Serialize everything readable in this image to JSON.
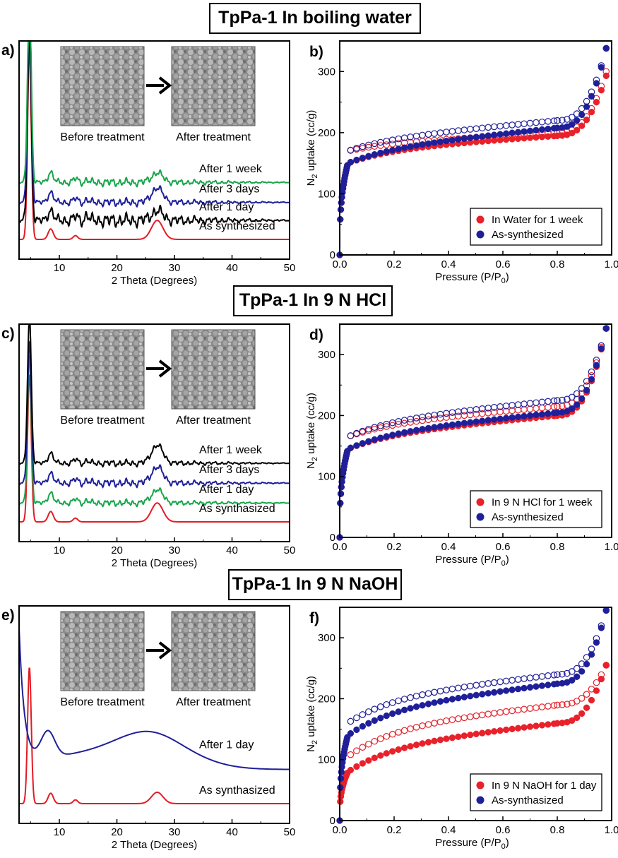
{
  "sections": [
    {
      "title": "TpPa-1 In boiling water"
    },
    {
      "title": "TpPa-1 In 9 N HCl"
    },
    {
      "title": "TpPa-1 In 9 N NaOH"
    }
  ],
  "chart_data": [
    {
      "panel": "a)",
      "type": "line",
      "xlabel": "2 Theta (Degrees)",
      "ylabel": "",
      "xlim": [
        3,
        50
      ],
      "xticks": [
        10,
        20,
        30,
        40,
        50
      ],
      "inset": {
        "left_caption": "Before treatment",
        "right_caption": "After treatment"
      },
      "series": [
        {
          "name": "As synthesized",
          "color": "#e31b23",
          "offset": 0.0,
          "peak": 1.0,
          "hump": 0.1,
          "noise": 0.0
        },
        {
          "name": "After 1 day",
          "color": "#000000",
          "offset": 0.1,
          "peak": 0.98,
          "hump": 0.05,
          "noise": 0.02
        },
        {
          "name": "After 3 days",
          "color": "#1f1f9a",
          "offset": 0.195,
          "peak": 1.06,
          "hump": 0.075,
          "noise": 0.012
        },
        {
          "name": "After 1 week",
          "color": "#17a64a",
          "offset": 0.3,
          "peak": 1.0,
          "hump": 0.05,
          "noise": 0.012
        }
      ]
    },
    {
      "panel": "b)",
      "type": "scatter",
      "xlabel": "Pressure (P/P",
      "xlabel_sub": "0",
      "xlabel_end": ")",
      "ylabel": "N",
      "ylabel_sub": "2",
      "ylabel_end": " uptake (cc/g)",
      "xlim": [
        0,
        1.0
      ],
      "ylim": [
        0,
        350
      ],
      "xticks": [
        "0.0",
        "0.2",
        "0.4",
        "0.6",
        "0.8",
        "1.0"
      ],
      "yticks": [
        0,
        100,
        200,
        300
      ],
      "legend": "bottom-right",
      "series": [
        {
          "name": "In Water for 1 week",
          "color": "#e8212a",
          "p": [
            150,
            172,
            195,
            293,
            0.9
          ],
          "d": [
            170,
            182,
            200,
            300
          ]
        },
        {
          "name": "As-synthesized",
          "color": "#1f1f9a",
          "p": [
            150,
            172,
            208,
            338,
            0.86
          ],
          "d": [
            170,
            188,
            220,
            338
          ]
        }
      ]
    },
    {
      "panel": "c)",
      "type": "line",
      "xlabel": "2 Theta (Degrees)",
      "ylabel": "",
      "xlim": [
        3,
        50
      ],
      "xticks": [
        10,
        20,
        30,
        40,
        50
      ],
      "inset": {
        "left_caption": "Before treatment",
        "right_caption": "After treatment"
      },
      "series": [
        {
          "name": "As synthasized",
          "color": "#e31b23",
          "offset": 0.0,
          "peak": 0.78,
          "hump": 0.1,
          "noise": 0.0
        },
        {
          "name": "After 1 day",
          "color": "#17a64a",
          "offset": 0.1,
          "peak": 0.78,
          "hump": 0.07,
          "noise": 0.01
        },
        {
          "name": "After 3 days",
          "color": "#1f1f9a",
          "offset": 0.205,
          "peak": 0.75,
          "hump": 0.085,
          "noise": 0.012
        },
        {
          "name": "After 1 week",
          "color": "#000000",
          "offset": 0.31,
          "peak": 0.78,
          "hump": 0.095,
          "noise": 0.01
        }
      ]
    },
    {
      "panel": "d)",
      "type": "scatter",
      "xlabel": "Pressure (P/P",
      "xlabel_sub": "0",
      "xlabel_end": ")",
      "ylabel": "N",
      "ylabel_sub": "2",
      "ylabel_end": " uptake (cc/g)",
      "xlim": [
        0,
        1.0
      ],
      "ylim": [
        0,
        350
      ],
      "xticks": [
        "0.0",
        "0.2",
        "0.4",
        "0.6",
        "0.8",
        "1.0"
      ],
      "yticks": [
        0,
        100,
        200,
        300
      ],
      "legend": "bottom-right",
      "series": [
        {
          "name": "In 9 N HCl for 1 week",
          "color": "#e8212a",
          "p": [
            145,
            168,
            200,
            343,
            0.86
          ],
          "d": [
            165,
            185,
            215,
            343
          ]
        },
        {
          "name": "As-synthesized",
          "color": "#1f1f9a",
          "p": [
            145,
            170,
            205,
            343,
            0.84
          ],
          "d": [
            165,
            190,
            225,
            343
          ]
        }
      ]
    },
    {
      "panel": "e)",
      "type": "line",
      "xlabel": "2 Theta (Degrees)",
      "ylabel": "",
      "xlim": [
        3,
        50
      ],
      "xticks": [
        10,
        20,
        30,
        40,
        50
      ],
      "inset": {
        "left_caption": "Before treatment",
        "right_caption": "After treatment"
      },
      "series": [
        {
          "name": "As synthasized",
          "color": "#e31b23",
          "offset": 0.0,
          "peak": 0.72,
          "hump": 0.06,
          "noise": 0.0
        },
        {
          "name": "After 1 day",
          "color": "#1f1f9a",
          "offset": 0.0,
          "amorphous": true
        }
      ]
    },
    {
      "panel": "f)",
      "type": "scatter",
      "xlabel": "Pressure (P/P",
      "xlabel_sub": "0",
      "xlabel_end": ")",
      "ylabel": "N",
      "ylabel_sub": "2",
      "ylabel_end": " uptake (cc/g)",
      "xlim": [
        0,
        1.0
      ],
      "ylim": [
        0,
        350
      ],
      "xticks": [
        "0.0",
        "0.2",
        "0.4",
        "0.6",
        "0.8",
        "1.0"
      ],
      "yticks": [
        0,
        100,
        200,
        300
      ],
      "legend": "bottom-right",
      "series": [
        {
          "name": "In 9 N NaOH for 1 day",
          "color": "#e8212a",
          "p": [
            80,
            120,
            160,
            255,
            0.88
          ],
          "d": [
            105,
            150,
            190,
            255
          ]
        },
        {
          "name": "As-synthasized",
          "color": "#1f1f9a",
          "p": [
            140,
            182,
            225,
            345,
            0.86
          ],
          "d": [
            160,
            200,
            240,
            345
          ]
        }
      ]
    }
  ]
}
